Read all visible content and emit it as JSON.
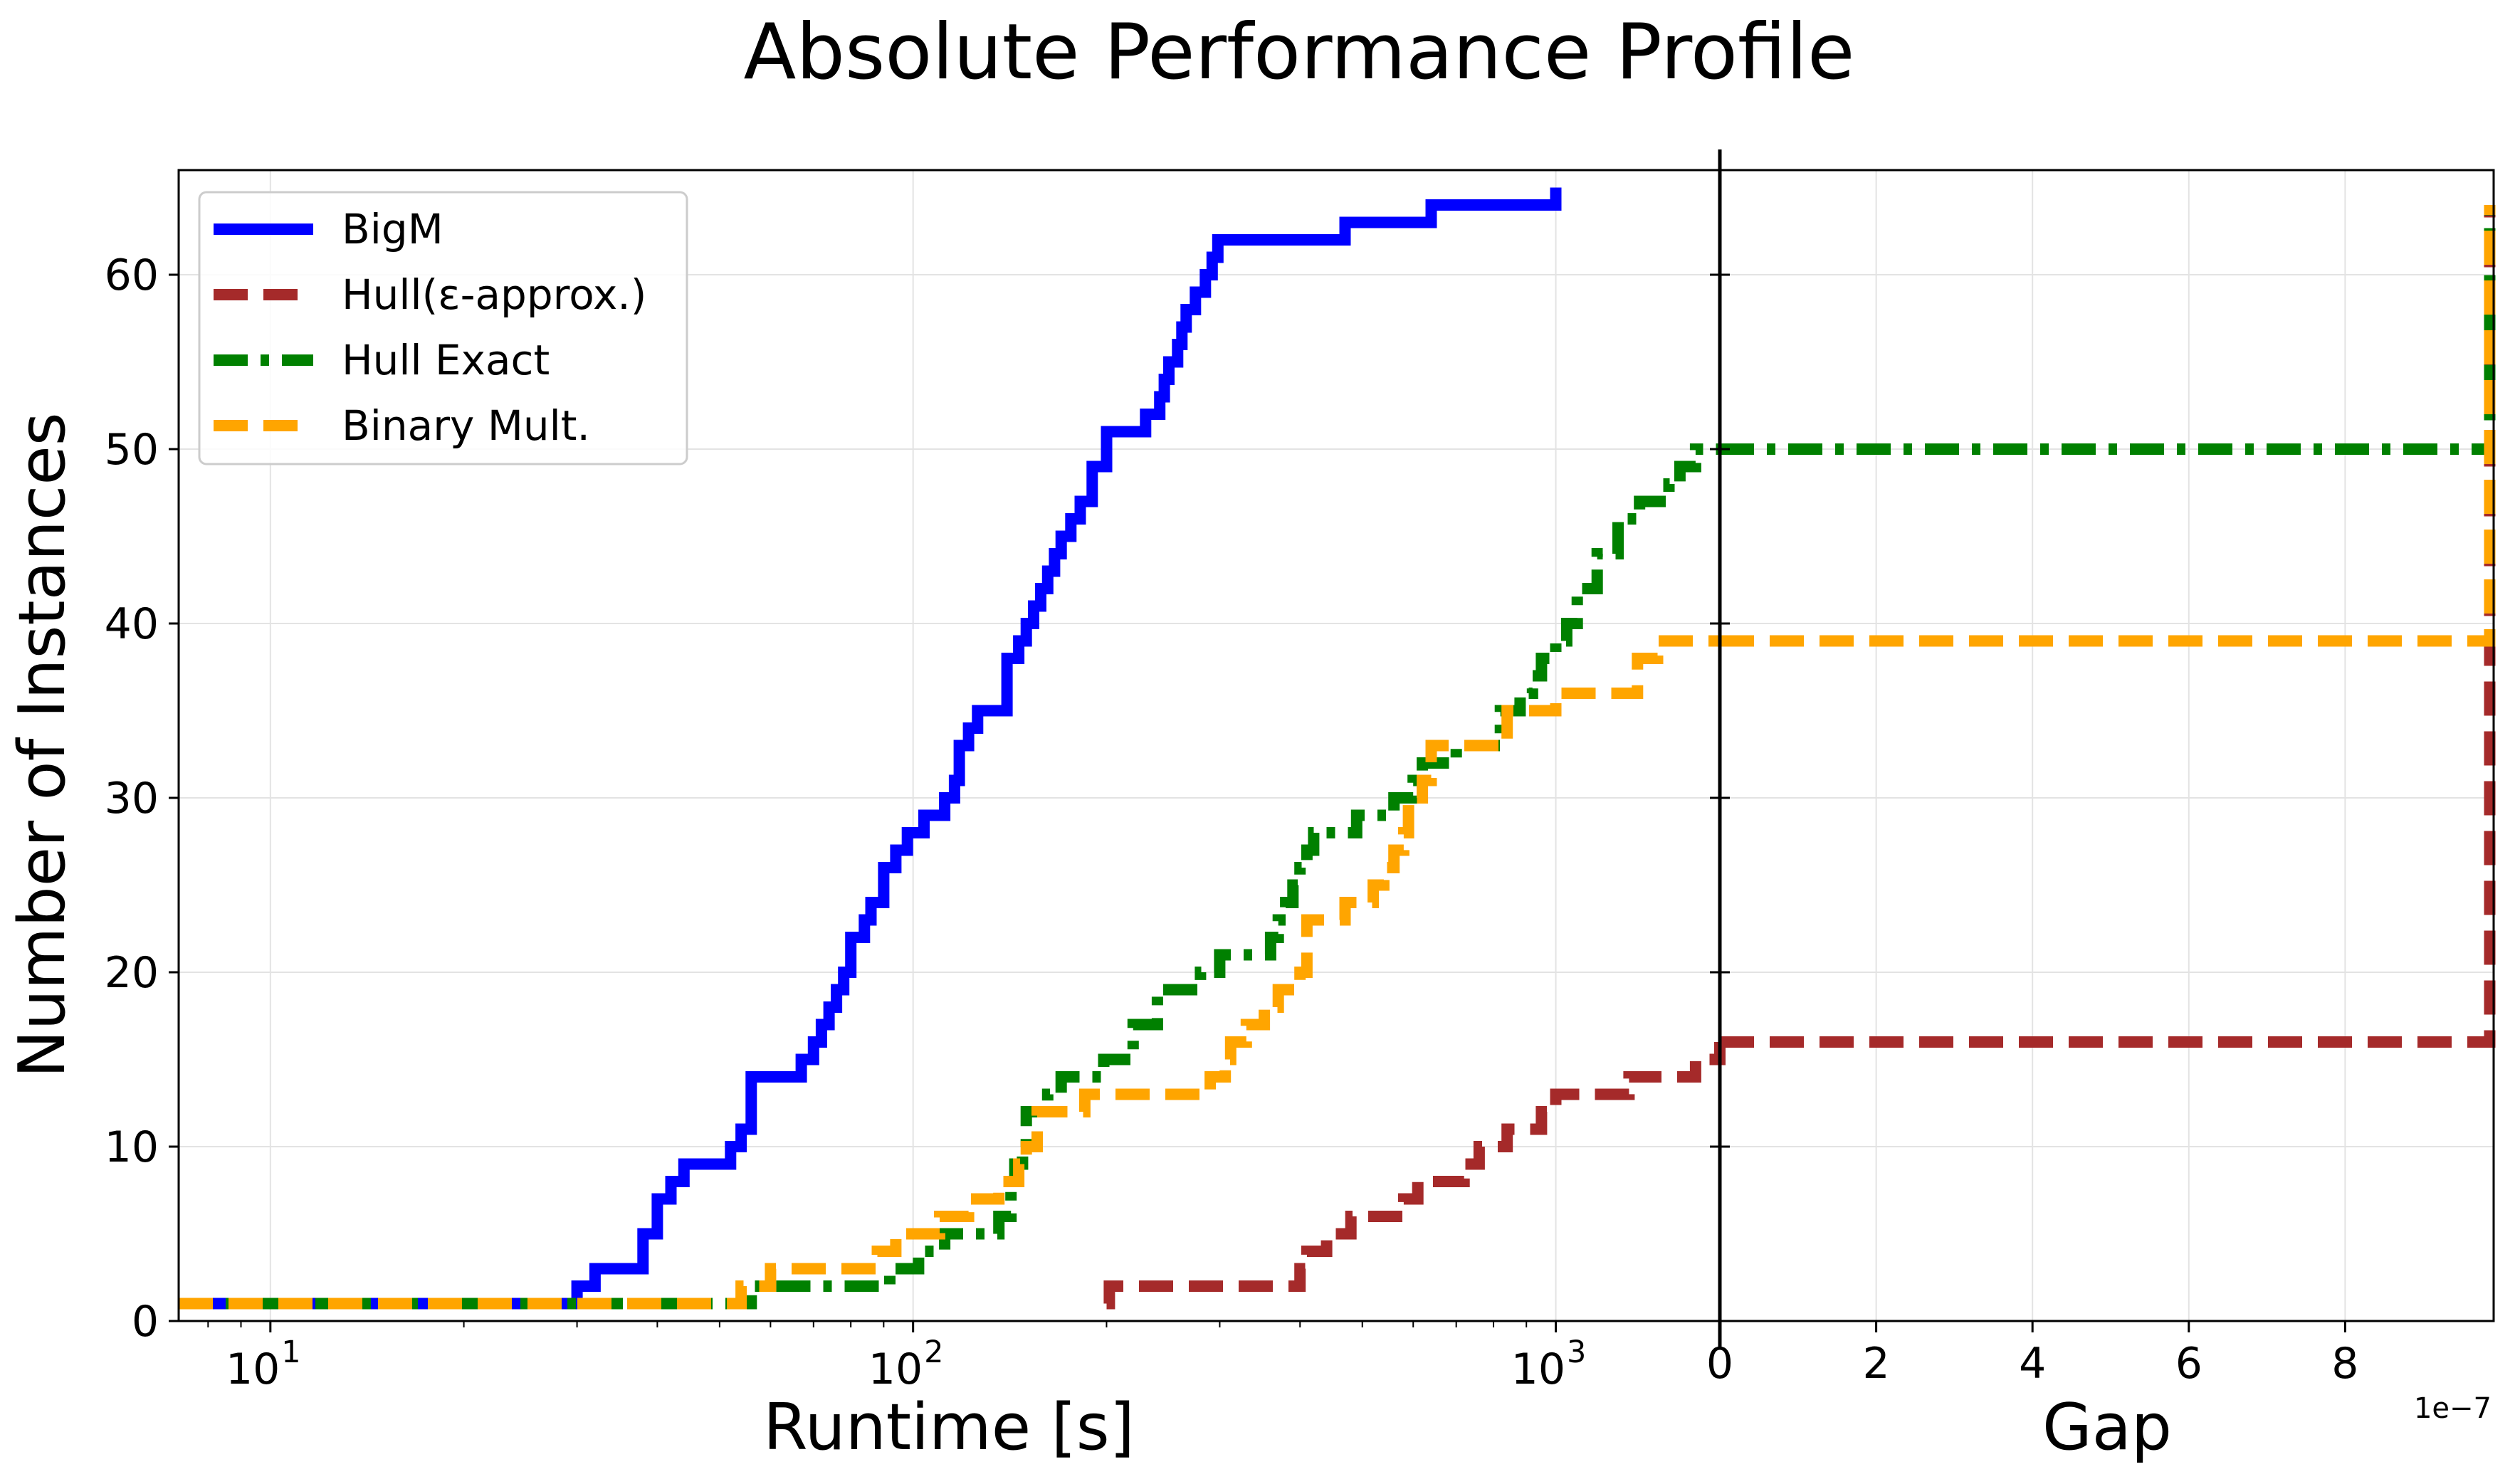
{
  "title": "Absolute Performance Profile",
  "ylabel": "Number of Instances",
  "legend": {
    "placement": "top-left",
    "entries": [
      "BigM",
      "Hull(ε-approx.)",
      "Hull Exact",
      "Binary Mult."
    ]
  },
  "colors": {
    "BigM": "#0000ff",
    "Hull(ε-approx.)": "#a52a2a",
    "Hull Exact": "#008000",
    "Binary Mult.": "#ffa500"
  },
  "chart_data": [
    {
      "type": "line",
      "step": "post",
      "xlabel": "Runtime [s]",
      "ylabel": "Number of Instances",
      "xscale": "log",
      "xlim": [
        7.2,
        1800
      ],
      "ylim": [
        0,
        66
      ],
      "grid": true,
      "xticks": [
        {
          "base": "10",
          "exp": "1"
        },
        {
          "base": "10",
          "exp": "2"
        },
        {
          "base": "10",
          "exp": "3"
        }
      ],
      "xtick_values": [
        10,
        100,
        1000
      ],
      "yticks": [
        0,
        10,
        20,
        30,
        40,
        50,
        60
      ],
      "series": [
        {
          "name": "BigM",
          "style": "solid",
          "x": [
            7.2,
            30,
            32,
            38,
            40,
            42,
            44,
            52,
            54,
            56,
            67,
            70,
            72,
            74,
            76,
            78,
            80,
            84,
            86,
            90,
            94,
            98,
            104,
            112,
            116,
            118,
            122,
            126,
            140,
            146,
            150,
            154,
            158,
            162,
            166,
            170,
            176,
            182,
            190,
            200,
            230,
            242,
            246,
            250,
            258,
            262,
            266,
            275,
            285,
            292,
            298,
            310,
            330,
            380,
            470,
            640,
            1000
          ],
          "y": [
            1,
            2,
            3,
            5,
            7,
            8,
            9,
            10,
            11,
            14,
            15,
            16,
            17,
            18,
            19,
            20,
            22,
            23,
            24,
            26,
            27,
            28,
            29,
            30,
            31,
            33,
            34,
            35,
            38,
            39,
            40,
            41,
            42,
            43,
            44,
            45,
            46,
            47,
            49,
            51,
            52,
            53,
            54,
            55,
            56,
            57,
            58,
            59,
            60,
            61,
            62,
            62,
            62,
            62,
            63,
            64,
            65
          ]
        },
        {
          "name": "Hull(ε-approx.)",
          "style": "dashed",
          "x": [
            200,
            202,
            300,
            350,
            400,
            410,
            440,
            480,
            560,
            580,
            610,
            720,
            760,
            840,
            950,
            1000,
            1100,
            1300,
            1500,
            1650,
            1800
          ],
          "y": [
            1,
            2,
            2,
            2,
            3,
            4,
            5,
            6,
            6,
            7,
            8,
            9,
            10,
            11,
            12,
            13,
            13,
            14,
            14,
            15,
            16
          ]
        },
        {
          "name": "Hull Exact",
          "style": "dashdot",
          "x": [
            7.2,
            45,
            56,
            60,
            92,
            98,
            102,
            108,
            112,
            118,
            136,
            142,
            144,
            148,
            150,
            158,
            162,
            166,
            170,
            188,
            198,
            220,
            230,
            240,
            280,
            300,
            320,
            360,
            370,
            380,
            390,
            400,
            410,
            420,
            450,
            490,
            520,
            560,
            600,
            620,
            700,
            760,
            820,
            880,
            920,
            950,
            1000,
            1040,
            1080,
            1160,
            1250,
            1350,
            1500,
            1560,
            1650,
            1800
          ],
          "y": [
            1,
            1,
            2,
            2,
            3,
            3,
            4,
            4,
            5,
            5,
            6,
            8,
            9,
            10,
            12,
            12,
            13,
            13,
            14,
            14,
            15,
            17,
            17,
            19,
            20,
            21,
            21,
            22,
            23,
            24,
            25,
            26,
            27,
            28,
            28,
            29,
            29,
            30,
            31,
            32,
            33,
            33,
            35,
            36,
            37,
            38,
            39,
            40,
            42,
            44,
            46,
            47,
            48,
            49,
            50,
            50
          ]
        },
        {
          "name": "Binary Mult.",
          "style": "dashed",
          "x": [
            7.2,
            50,
            54,
            60,
            88,
            94,
            106,
            110,
            112,
            122,
            130,
            136,
            140,
            146,
            150,
            156,
            180,
            185,
            240,
            280,
            290,
            298,
            306,
            312,
            330,
            352,
            362,
            370,
            400,
            410,
            470,
            520,
            540,
            560,
            580,
            590,
            620,
            640,
            680,
            820,
            840,
            880,
            940,
            1000,
            1100,
            1240,
            1340,
            1370,
            1440,
            1800
          ],
          "y": [
            1,
            1,
            2,
            3,
            4,
            5,
            5,
            6,
            6,
            7,
            7,
            8,
            8,
            9,
            10,
            12,
            12,
            13,
            13,
            13,
            14,
            14,
            15,
            16,
            17,
            18,
            18,
            19,
            20,
            23,
            24,
            25,
            26,
            27,
            28,
            30,
            31,
            33,
            33,
            33,
            35,
            35,
            35,
            36,
            36,
            36,
            38,
            38,
            39,
            39
          ]
        }
      ]
    },
    {
      "type": "line",
      "step": "post",
      "xlabel": "Gap",
      "xlim": [
        0,
        9.9e-07
      ],
      "ylim": [
        0,
        66
      ],
      "grid": true,
      "xticks": [
        "0",
        "2",
        "4",
        "6",
        "8"
      ],
      "xtick_values": [
        0,
        2e-07,
        4e-07,
        6e-07,
        8e-07
      ],
      "x_offset_label": "1e−7",
      "series": [
        {
          "name": "Hull(ε-approx.)",
          "style": "dashed",
          "x": [
            0,
            9.85e-07,
            9.85e-07
          ],
          "y": [
            16,
            16,
            64
          ]
        },
        {
          "name": "Hull Exact",
          "style": "dashdot",
          "x": [
            0,
            9.85e-07,
            9.85e-07
          ],
          "y": [
            50,
            50,
            64
          ]
        },
        {
          "name": "Binary Mult.",
          "style": "dashed",
          "x": [
            0,
            9.85e-07,
            9.85e-07
          ],
          "y": [
            39,
            39,
            64
          ]
        }
      ]
    }
  ]
}
